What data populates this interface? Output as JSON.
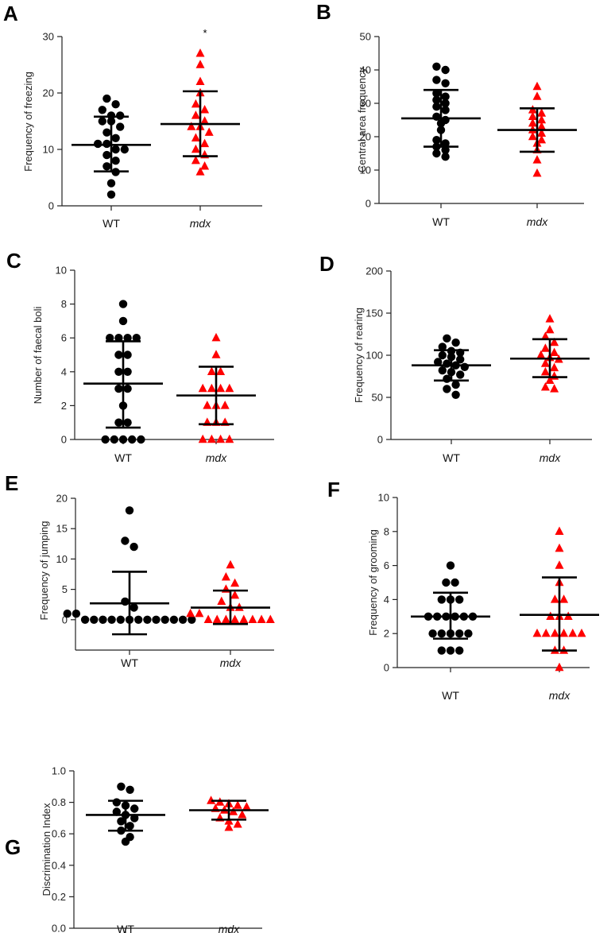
{
  "figure": {
    "wt_color": "#000000",
    "mdx_color": "#ff0000"
  },
  "chart_data": [
    {
      "panel": "A",
      "type": "scatter",
      "ylabel": "Frequency of freezing",
      "ylim": [
        0,
        30
      ],
      "yticks": [
        0,
        10,
        20,
        30
      ],
      "categories": [
        "WT",
        "mdx"
      ],
      "annotation": "*",
      "series": [
        {
          "name": "WT",
          "marker": "circle",
          "values": [
            19,
            18,
            17,
            16,
            16,
            15,
            15,
            14,
            13,
            12,
            11,
            11,
            10,
            10,
            9,
            8,
            7,
            6,
            4,
            2
          ],
          "mean": 10.8,
          "sd_low": 6.1,
          "sd_high": 15.8
        },
        {
          "name": "mdx",
          "marker": "triangle",
          "values": [
            27,
            25,
            22,
            20,
            18,
            17,
            16,
            15,
            14,
            14,
            13,
            12,
            11,
            10,
            9,
            8,
            7,
            6
          ],
          "mean": 14.5,
          "sd_low": 8.8,
          "sd_high": 20.3
        }
      ]
    },
    {
      "panel": "B",
      "type": "scatter",
      "ylabel": "Central area frequency",
      "ylim": [
        0,
        50
      ],
      "yticks": [
        0,
        10,
        20,
        30,
        40,
        50
      ],
      "categories": [
        "WT",
        "mdx"
      ],
      "series": [
        {
          "name": "WT",
          "marker": "circle",
          "values": [
            41,
            40,
            37,
            36,
            33,
            32,
            31,
            30,
            29,
            28,
            26,
            25,
            24,
            22,
            19,
            18,
            17,
            16,
            15,
            14
          ],
          "mean": 25.5,
          "sd_low": 17.0,
          "sd_high": 34.0
        },
        {
          "name": "mdx",
          "marker": "triangle",
          "values": [
            35,
            32,
            28,
            27,
            26,
            25,
            24,
            23,
            22,
            21,
            20,
            19,
            18,
            16,
            13,
            9
          ],
          "mean": 22.0,
          "sd_low": 15.5,
          "sd_high": 28.5
        }
      ]
    },
    {
      "panel": "C",
      "type": "scatter",
      "ylabel": "Number of faecal boli",
      "ylim": [
        0,
        10
      ],
      "yticks": [
        0,
        2,
        4,
        6,
        8,
        10
      ],
      "categories": [
        "WT",
        "mdx"
      ],
      "series": [
        {
          "name": "WT",
          "marker": "circle",
          "values": [
            8,
            7,
            6,
            6,
            6,
            6,
            5,
            5,
            4,
            4,
            3,
            3,
            2,
            1,
            1,
            0,
            0,
            0,
            0,
            0
          ],
          "mean": 3.3,
          "sd_low": 0.7,
          "sd_high": 5.8
        },
        {
          "name": "mdx",
          "marker": "triangle",
          "values": [
            6,
            5,
            4,
            4,
            3,
            3,
            3,
            3,
            2,
            2,
            2,
            1,
            1,
            1,
            0,
            0,
            0,
            0
          ],
          "mean": 2.6,
          "sd_low": 0.9,
          "sd_high": 4.3
        }
      ]
    },
    {
      "panel": "D",
      "type": "scatter",
      "ylabel": "Frequency of rearing",
      "ylim": [
        0,
        200
      ],
      "yticks": [
        0,
        50,
        100,
        150,
        200
      ],
      "categories": [
        "WT",
        "mdx"
      ],
      "series": [
        {
          "name": "WT",
          "marker": "circle",
          "values": [
            120,
            115,
            110,
            105,
            103,
            100,
            98,
            95,
            92,
            90,
            88,
            86,
            82,
            80,
            77,
            72,
            65,
            60,
            53
          ],
          "mean": 88,
          "sd_low": 70,
          "sd_high": 106
        },
        {
          "name": "mdx",
          "marker": "triangle",
          "values": [
            143,
            130,
            122,
            115,
            108,
            103,
            100,
            97,
            95,
            90,
            85,
            80,
            75,
            70,
            62,
            60
          ],
          "mean": 96,
          "sd_low": 74,
          "sd_high": 119
        }
      ]
    },
    {
      "panel": "E",
      "type": "scatter",
      "ylabel": "Frequency of jumping",
      "ylim": [
        -5,
        20
      ],
      "yticks": [
        0,
        5,
        10,
        15,
        20
      ],
      "categories": [
        "WT",
        "mdx"
      ],
      "series": [
        {
          "name": "WT",
          "marker": "circle",
          "values": [
            18,
            13,
            12,
            3,
            2,
            1,
            1,
            0,
            0,
            0,
            0,
            0,
            0,
            0,
            0,
            0,
            0,
            0,
            0,
            0
          ],
          "mean": 2.7,
          "sd_low": -2.4,
          "sd_high": 7.9
        },
        {
          "name": "mdx",
          "marker": "triangle",
          "values": [
            9,
            7,
            6,
            5,
            4,
            3,
            2,
            2,
            1,
            1,
            0,
            0,
            0,
            0,
            0,
            0,
            0,
            0
          ],
          "mean": 2.0,
          "sd_low": -0.7,
          "sd_high": 4.8
        }
      ]
    },
    {
      "panel": "F",
      "type": "scatter",
      "ylabel": "Frequency of grooming",
      "ylim": [
        0,
        10
      ],
      "yticks": [
        0,
        2,
        4,
        6,
        8,
        10
      ],
      "categories": [
        "WT",
        "mdx"
      ],
      "series": [
        {
          "name": "WT",
          "marker": "circle",
          "values": [
            6,
            5,
            5,
            4,
            4,
            4,
            3,
            3,
            3,
            3,
            3,
            3,
            2,
            2,
            2,
            2,
            2,
            1,
            1,
            1
          ],
          "mean": 3.0,
          "sd_low": 1.7,
          "sd_high": 4.4
        },
        {
          "name": "mdx",
          "marker": "triangle",
          "values": [
            8,
            7,
            6,
            5,
            4,
            4,
            3,
            3,
            3,
            2,
            2,
            2,
            2,
            2,
            2,
            1,
            1,
            0
          ],
          "mean": 3.1,
          "sd_low": 1.0,
          "sd_high": 5.3
        }
      ]
    },
    {
      "panel": "G",
      "type": "scatter",
      "ylabel": "Discrimination Index",
      "ylim": [
        0,
        1.0
      ],
      "yticks": [
        0.0,
        0.2,
        0.4,
        0.6,
        0.8,
        1.0
      ],
      "categories": [
        "WT",
        "mdx"
      ],
      "series": [
        {
          "name": "WT",
          "marker": "circle",
          "values": [
            0.9,
            0.88,
            0.8,
            0.78,
            0.76,
            0.74,
            0.72,
            0.7,
            0.68,
            0.65,
            0.62,
            0.58,
            0.55
          ],
          "mean": 0.72,
          "sd_low": 0.62,
          "sd_high": 0.81
        },
        {
          "name": "mdx",
          "marker": "triangle",
          "values": [
            0.81,
            0.8,
            0.79,
            0.78,
            0.77,
            0.76,
            0.75,
            0.74,
            0.72,
            0.7,
            0.68,
            0.66,
            0.64
          ],
          "mean": 0.75,
          "sd_low": 0.69,
          "sd_high": 0.81
        }
      ]
    }
  ]
}
